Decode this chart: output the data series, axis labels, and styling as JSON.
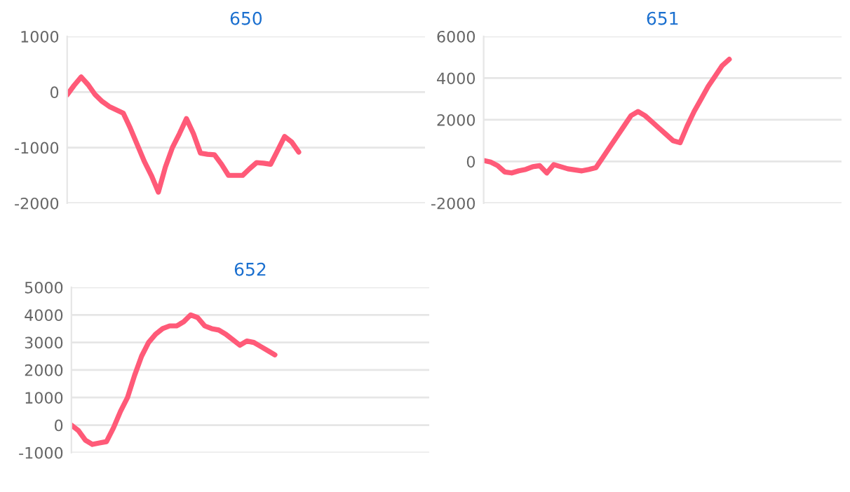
{
  "chart_data": [
    {
      "type": "line",
      "title": "650",
      "categories": [
        null,
        null,
        null,
        null,
        null,
        null,
        null,
        null,
        null,
        null,
        null,
        null,
        null,
        null,
        null,
        null,
        null,
        null,
        null,
        null,
        null,
        null,
        null,
        null,
        null,
        null,
        null,
        null,
        null,
        null,
        null,
        null,
        null,
        null,
        null,
        null,
        null,
        null,
        null,
        null,
        null,
        null,
        null,
        null,
        null,
        null,
        null,
        null,
        null,
        null,
        null,
        null
      ],
      "series": [
        {
          "color": "#ff5a78",
          "values": [
            -50,
            120,
            270,
            130,
            -50,
            -170,
            -260,
            -320,
            -380,
            -650,
            -950,
            -1250,
            -1500,
            -1800,
            -1350,
            -1000,
            -750,
            -480,
            -750,
            -1100,
            -1120,
            -1130,
            -1300,
            -1500,
            -1500,
            -1500,
            -1380,
            -1270,
            -1280,
            -1300,
            -1050,
            -800,
            -900,
            -1080,
            null,
            null,
            null,
            null,
            null,
            null,
            null,
            null,
            null,
            null,
            null,
            null,
            null,
            null,
            null,
            null,
            null,
            null
          ]
        }
      ],
      "ylim": [
        -2000,
        1000
      ],
      "yticks": [
        -2000,
        -1000,
        0,
        1000
      ],
      "grid": "y",
      "marker": "none",
      "tick_labels": "y"
    },
    {
      "type": "line",
      "title": "651",
      "categories": [
        null,
        null,
        null,
        null,
        null,
        null,
        null,
        null,
        null,
        null,
        null,
        null,
        null,
        null,
        null,
        null,
        null,
        null,
        null,
        null,
        null,
        null,
        null,
        null,
        null,
        null,
        null,
        null,
        null,
        null,
        null,
        null,
        null,
        null,
        null,
        null,
        null,
        null,
        null,
        null,
        null,
        null,
        null,
        null,
        null,
        null,
        null,
        null,
        null,
        null,
        null,
        null
      ],
      "series": [
        {
          "color": "#ff5a78",
          "values": [
            50,
            -30,
            -200,
            -500,
            -550,
            -450,
            -380,
            -250,
            -200,
            -550,
            -150,
            -250,
            -350,
            -400,
            -450,
            -380,
            -300,
            200,
            700,
            1200,
            1700,
            2200,
            2400,
            2200,
            1900,
            1600,
            1300,
            1000,
            900,
            1700,
            2400,
            3000,
            3600,
            4100,
            4600,
            4900,
            null,
            null,
            null,
            null,
            null,
            null,
            null,
            null,
            null,
            null,
            null,
            null,
            null,
            null,
            null,
            null
          ]
        }
      ],
      "ylim": [
        -2000,
        6000
      ],
      "yticks": [
        -2000,
        0,
        2000,
        4000,
        6000
      ],
      "grid": "y",
      "marker": "none",
      "tick_labels": "y"
    },
    {
      "type": "line",
      "title": "652",
      "categories": [
        null,
        null,
        null,
        null,
        null,
        null,
        null,
        null,
        null,
        null,
        null,
        null,
        null,
        null,
        null,
        null,
        null,
        null,
        null,
        null,
        null,
        null,
        null,
        null,
        null,
        null,
        null,
        null,
        null,
        null,
        null,
        null,
        null,
        null,
        null,
        null,
        null,
        null,
        null,
        null,
        null,
        null,
        null,
        null,
        null,
        null,
        null,
        null,
        null,
        null,
        null,
        null
      ],
      "series": [
        {
          "color": "#ff5a78",
          "values": [
            0,
            -200,
            -550,
            -700,
            -650,
            -600,
            -100,
            500,
            1000,
            1800,
            2500,
            3000,
            3300,
            3500,
            3600,
            3600,
            3750,
            4000,
            3900,
            3600,
            3500,
            3450,
            3300,
            3100,
            2900,
            3050,
            3000,
            2850,
            2700,
            2550,
            null,
            null,
            null,
            null,
            null,
            null,
            null,
            null,
            null,
            null,
            null,
            null,
            null,
            null,
            null,
            null,
            null,
            null,
            null,
            null,
            null,
            null
          ]
        }
      ],
      "ylim": [
        -1000,
        5000
      ],
      "yticks": [
        -1000,
        0,
        1000,
        2000,
        3000,
        4000,
        5000
      ],
      "grid": "y",
      "marker": "none",
      "tick_labels": "y"
    }
  ]
}
